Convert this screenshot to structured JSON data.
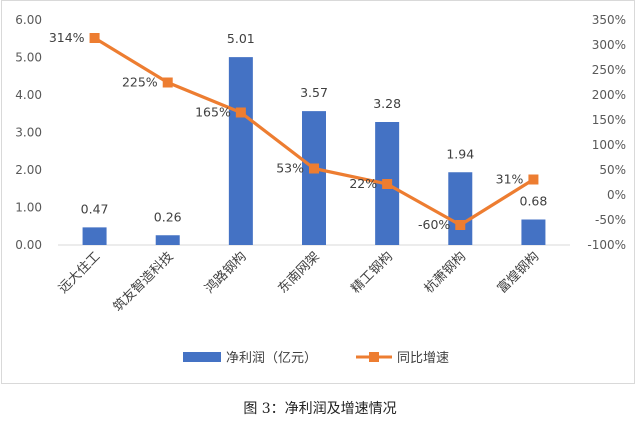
{
  "chart_data": {
    "type": "bar",
    "categories": [
      "远大住工",
      "筑友智造科技",
      "鸿路钢构",
      "东南网架",
      "精工钢构",
      "杭萧钢构",
      "富煌钢构"
    ],
    "series": [
      {
        "name": "净利润（亿元）",
        "type": "bar",
        "axis": "left",
        "values": [
          0.47,
          0.26,
          5.01,
          3.57,
          3.28,
          1.94,
          0.68
        ],
        "labels": [
          "0.47",
          "0.26",
          "5.01",
          "3.57",
          "3.28",
          "1.94",
          "0.68"
        ],
        "color": "#4472c4"
      },
      {
        "name": "同比增速",
        "type": "line",
        "axis": "right",
        "values": [
          314,
          225,
          165,
          53,
          22,
          -60,
          31
        ],
        "labels": [
          "314%",
          "225%",
          "165%",
          "53%",
          "22%",
          "-60%",
          "31%"
        ],
        "color": "#ed7d31"
      }
    ],
    "y_left": {
      "range": [
        0,
        6
      ],
      "ticks": [
        "0.00",
        "1.00",
        "2.00",
        "3.00",
        "4.00",
        "5.00",
        "6.00"
      ]
    },
    "y_right": {
      "range": [
        -100,
        350
      ],
      "ticks": [
        "-100%",
        "-50%",
        "0%",
        "50%",
        "100%",
        "150%",
        "200%",
        "250%",
        "300%",
        "350%"
      ]
    },
    "grid": false,
    "legend_position": "bottom"
  },
  "caption": "图 3：净利润及增速情况"
}
